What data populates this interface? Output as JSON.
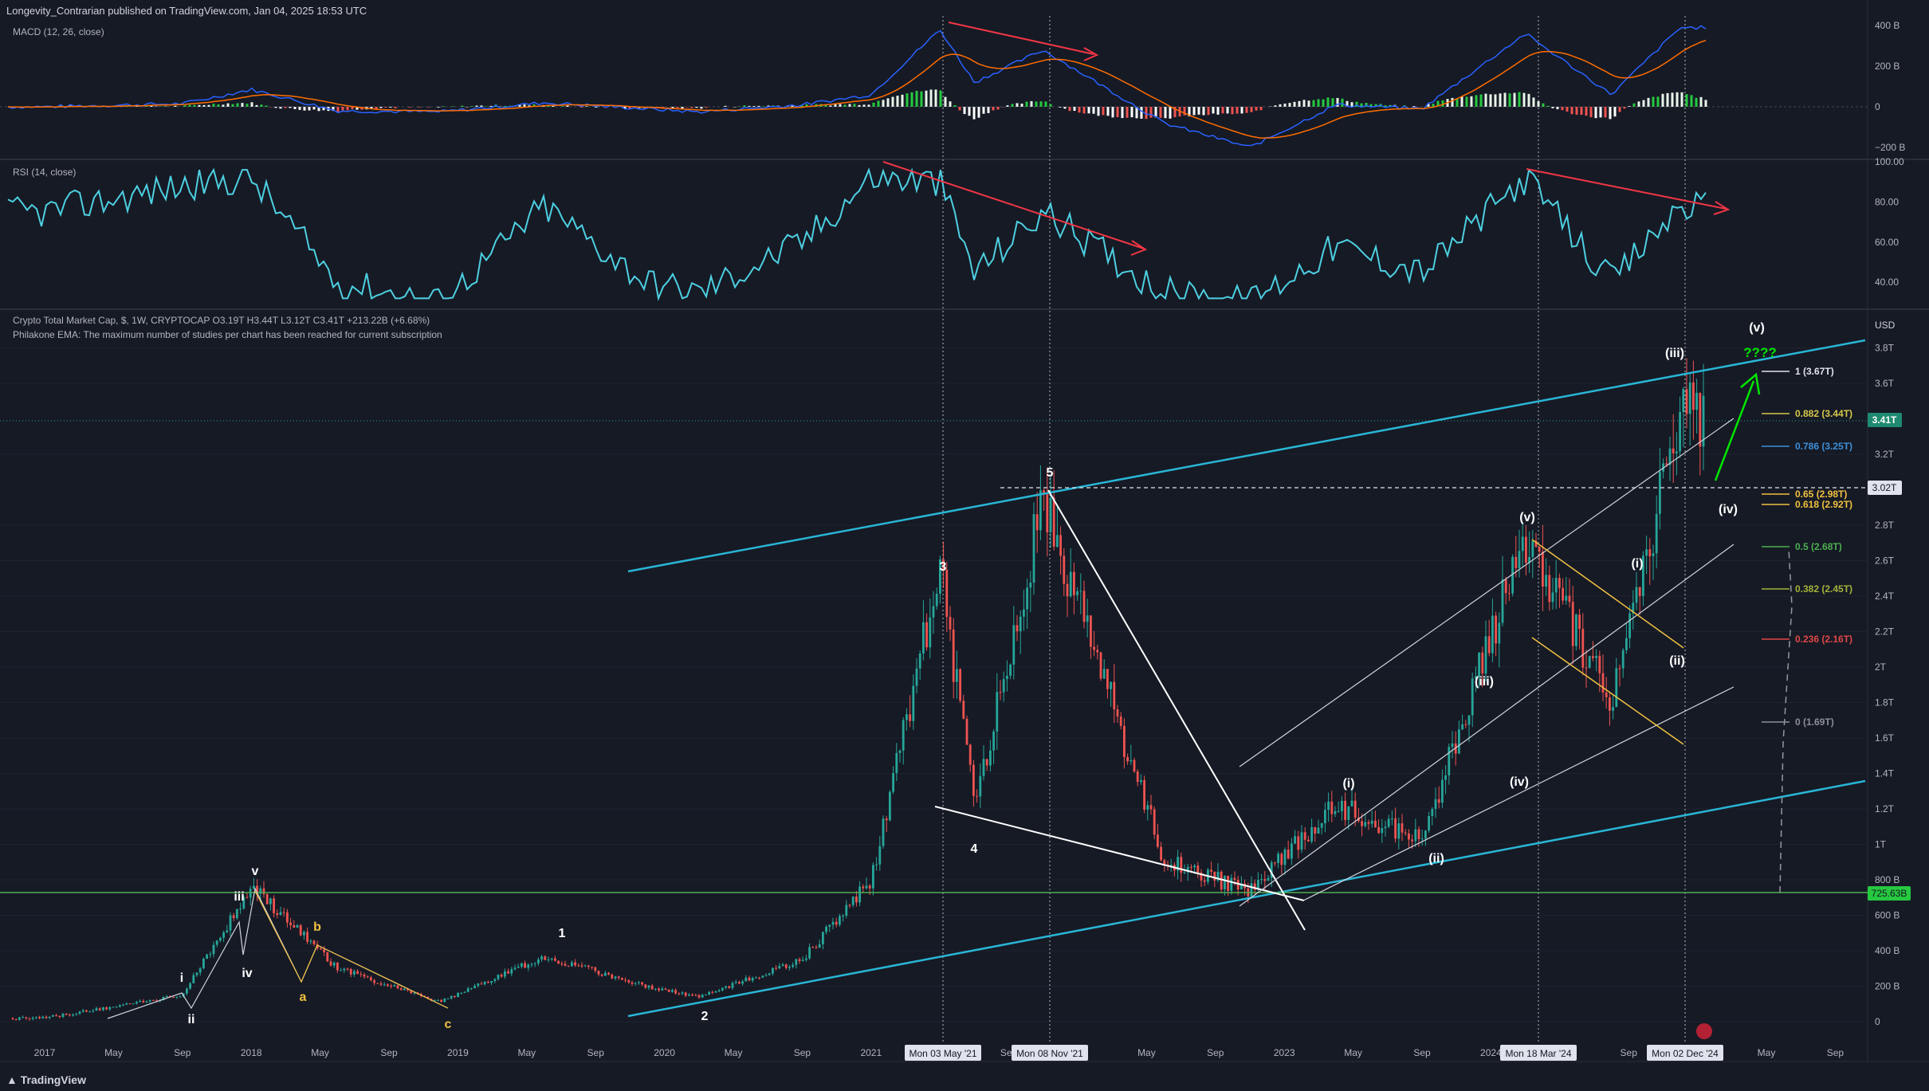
{
  "header": {
    "published": "Longevity_Contrarian published on TradingView.com, Jan 04, 2025 18:53 UTC",
    "brand": "TradingView"
  },
  "macd": {
    "label": "MACD (12, 26, close)",
    "ticks": [
      "400 B",
      "200 B",
      "0",
      "−200 B"
    ]
  },
  "rsi": {
    "label": "RSI (14, close)",
    "ticks": [
      "100.00",
      "80.00",
      "60.00",
      "40.00"
    ]
  },
  "main": {
    "legend_line1_prefix": "Crypto Total Market Cap, $, 1W, CRYPTOCAP",
    "ohlc": "O3.19T  H3.44T  L3.12T  C3.41T  +213.22B (+6.68%)",
    "legend_line2": "Philakone EMA: The maximum number of studies per chart has been reached for current subscription",
    "currency": "USD",
    "price_ticks": [
      "3.8T",
      "3.6T",
      "3.2T",
      "2.8T",
      "2.6T",
      "2.4T",
      "2.2T",
      "2T",
      "1.8T",
      "1.6T",
      "1.4T",
      "1.2T",
      "1T",
      "800 B",
      "600 B",
      "400 B",
      "200 B",
      "0"
    ],
    "last_price": "3.41T",
    "level_302": "3.02T",
    "support_level": "725.63B",
    "time_ticks": [
      "2017",
      "May",
      "Sep",
      "2018",
      "May",
      "Sep",
      "2019",
      "May",
      "Sep",
      "2020",
      "May",
      "Sep",
      "2021",
      "May",
      "Sep",
      "2022",
      "May",
      "Sep",
      "2023",
      "May",
      "Sep",
      "2024",
      "May",
      "Sep",
      "May",
      "Sep"
    ],
    "date_badges": [
      "Mon 03 May '21",
      "Mon 08 Nov '21",
      "Mon 18 Mar '24",
      "Mon 02 Dec '24"
    ],
    "fib": [
      {
        "label": "1 (3.67T)",
        "color": "#e0e3eb"
      },
      {
        "label": "0.882 (3.44T)",
        "color": "#d4c84a"
      },
      {
        "label": "0.786 (3.25T)",
        "color": "#3d8fd8"
      },
      {
        "label": "0.65 (2.98T)",
        "color": "#f0c040"
      },
      {
        "label": "0.618 (2.92T)",
        "color": "#f0c040"
      },
      {
        "label": "0.5 (2.68T)",
        "color": "#4caf50"
      },
      {
        "label": "0.382 (2.45T)",
        "color": "#a3b23a"
      },
      {
        "label": "0.236 (2.16T)",
        "color": "#e04747"
      },
      {
        "label": "0 (1.69T)",
        "color": "#8c8f99"
      }
    ],
    "wave_labels": [
      "i",
      "ii",
      "iii",
      "iv",
      "v",
      "a",
      "b",
      "c",
      "1",
      "2",
      "3",
      "4",
      "5",
      "(i)",
      "(ii)",
      "(iii)",
      "(iv)",
      "(v)",
      "(i)",
      "(ii)",
      "(iii)",
      "(iv)",
      "(v)",
      "????"
    ]
  },
  "chart_data": [
    {
      "type": "line",
      "title": "Crypto Total Market Cap, $, 1W, CRYPTOCAP",
      "ylabel": "USD",
      "x": [
        "2017-01",
        "2017-09",
        "2018-01",
        "2018-06",
        "2018-12",
        "2019-06",
        "2019-12",
        "2020-03",
        "2020-09",
        "2021-01",
        "2021-05",
        "2021-07",
        "2021-11",
        "2022-06",
        "2022-11",
        "2023-04",
        "2023-09",
        "2024-03",
        "2024-08",
        "2024-12"
      ],
      "series": [
        {
          "name": "Crypto Total Market Cap",
          "values": [
            0.02,
            0.15,
            0.76,
            0.3,
            0.11,
            0.37,
            0.2,
            0.14,
            0.35,
            0.8,
            2.55,
            1.22,
            2.95,
            0.92,
            0.73,
            1.23,
            1.03,
            2.74,
            1.78,
            3.41
          ]
        }
      ],
      "ylim": [
        0,
        3.9
      ]
    },
    {
      "type": "line",
      "title": "RSI (14, close)",
      "ylim": [
        30,
        100
      ],
      "series": [
        {
          "name": "RSI",
          "values": [
            75,
            88,
            92,
            40,
            30,
            78,
            40,
            35,
            60,
            92,
            90,
            45,
            75,
            35,
            30,
            58,
            45,
            92,
            40,
            78
          ]
        }
      ]
    },
    {
      "type": "bar",
      "title": "MACD (12, 26, close)",
      "ylim": [
        -250,
        430
      ],
      "series": [
        {
          "name": "MACD",
          "values": [
            0,
            15,
            85,
            -20,
            -25,
            20,
            -10,
            -25,
            10,
            60,
            380,
            120,
            280,
            -80,
            -200,
            10,
            -10,
            360,
            60,
            390
          ]
        }
      ]
    }
  ]
}
